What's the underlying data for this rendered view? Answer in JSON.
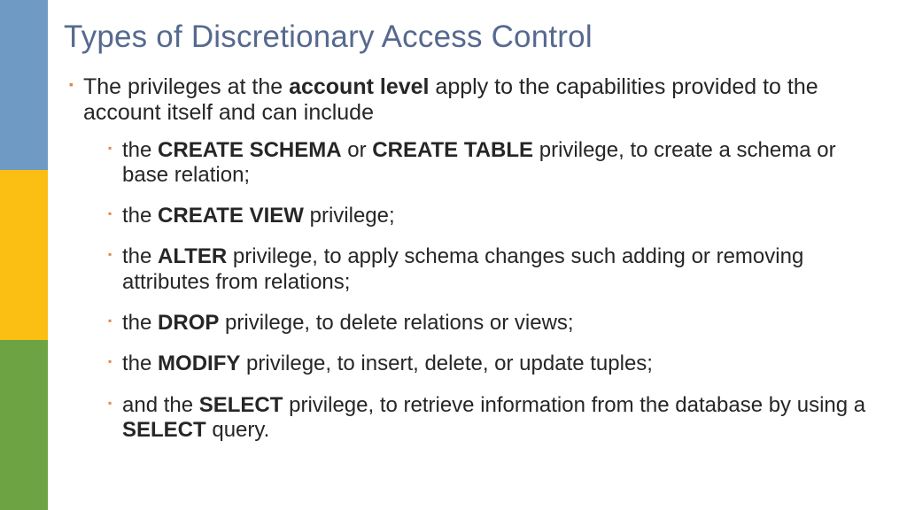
{
  "colors": {
    "title": "#56698f",
    "bullet": "#e08648",
    "body_text": "#262626",
    "stripe_top": "#6f9ac4",
    "stripe_mid": "#fbbe12",
    "stripe_bot": "#6ea344"
  },
  "title": "Types of Discretionary Access Control",
  "lead": {
    "pre": "The privileges at the ",
    "bold": "account level",
    "post": " apply to the capabilities provided to the account itself and can include"
  },
  "items": [
    {
      "segments": [
        {
          "t": "the "
        },
        {
          "t": "CREATE SCHEMA",
          "b": true
        },
        {
          "t": " or "
        },
        {
          "t": "CREATE TABLE",
          "b": true
        },
        {
          "t": " privilege, to create a schema or base relation;"
        }
      ]
    },
    {
      "segments": [
        {
          "t": "the "
        },
        {
          "t": "CREATE VIEW",
          "b": true
        },
        {
          "t": " privilege;"
        }
      ]
    },
    {
      "segments": [
        {
          "t": "the "
        },
        {
          "t": "ALTER",
          "b": true
        },
        {
          "t": " privilege, to apply schema changes such adding or removing attributes from relations;"
        }
      ]
    },
    {
      "segments": [
        {
          "t": "the "
        },
        {
          "t": "DROP",
          "b": true
        },
        {
          "t": " privilege, to delete relations or views;"
        }
      ]
    },
    {
      "segments": [
        {
          "t": "the "
        },
        {
          "t": "MODIFY",
          "b": true
        },
        {
          "t": " privilege, to insert, delete, or update tuples;"
        }
      ]
    },
    {
      "segments": [
        {
          "t": "and the "
        },
        {
          "t": "SELECT",
          "b": true
        },
        {
          "t": " privilege, to retrieve information from the database by using a "
        },
        {
          "t": "SELECT",
          "b": true
        },
        {
          "t": " query."
        }
      ]
    }
  ]
}
